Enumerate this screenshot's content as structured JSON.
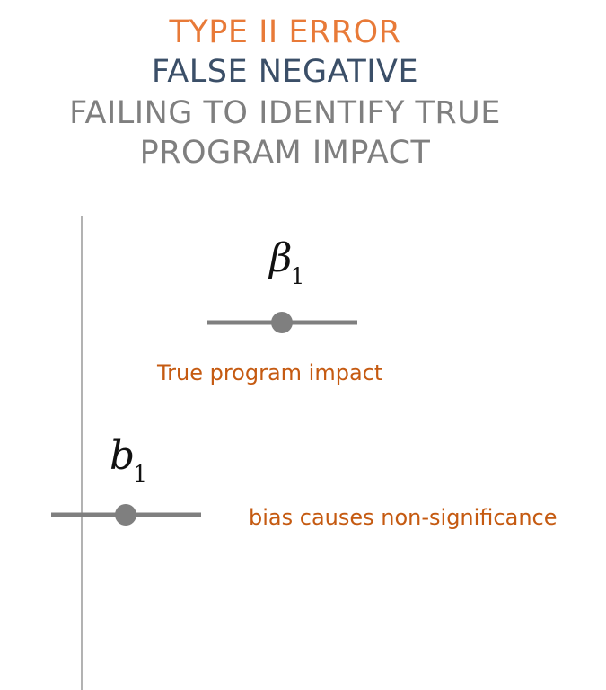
{
  "title": {
    "line1": "TYPE II ERROR",
    "line2": "FALSE NEGATIVE",
    "line3": "FAILING TO IDENTIFY TRUE",
    "line4": "PROGRAM IMPACT"
  },
  "colors": {
    "line1": "#e87a38",
    "line2": "#3b4f68",
    "line3": "#7f7f7f",
    "caption": "#c55a11",
    "marker": "#7f7f7f",
    "axis": "#808080"
  },
  "true_estimate": {
    "symbol": "β",
    "subscript": "1",
    "caption": "True program impact"
  },
  "biased_estimate": {
    "symbol": "b",
    "subscript": "1",
    "caption": "bias causes non-significance"
  }
}
